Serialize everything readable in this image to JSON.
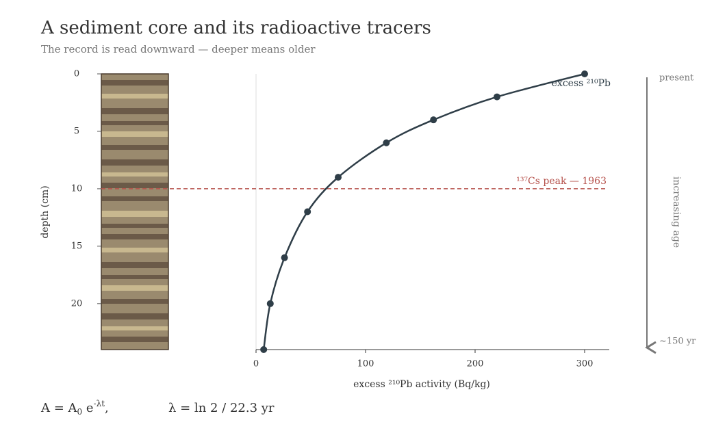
{
  "chart_data": {
    "type": "line",
    "title": "A sediment core and its radioactive tracers",
    "subtitle": "The record is read downward — deeper means older",
    "x_label": "excess ²¹⁰Pb activity (Bq/kg)",
    "y_label": "depth (cm)",
    "series": [
      {
        "name": "excess ²¹⁰Pb",
        "color": "#2f3e48",
        "x": [
          300,
          220,
          162,
          119,
          75,
          47,
          26,
          13,
          7
        ],
        "values": [
          0,
          2,
          4,
          6,
          9,
          12,
          16,
          20,
          24
        ]
      }
    ],
    "xlim": [
      0,
      322.5
    ],
    "xticks": [
      0,
      100,
      200,
      300
    ],
    "ylim": [
      0,
      24
    ],
    "yticks": [
      0,
      5,
      10,
      15,
      20
    ],
    "y_inverted": true,
    "marker": {
      "label": "¹³⁷Cs peak — 1963",
      "depth": 10,
      "color": "#b5504a"
    },
    "age_arrow": {
      "top": "present",
      "bottom": "~150 yr",
      "label": "increasing age"
    },
    "formulas": [
      {
        "parts": [
          "A = A",
          "0",
          " e",
          "-λt",
          ","
        ]
      },
      {
        "parts": [
          "λ = ln 2 / 22.3 yr"
        ]
      }
    ]
  }
}
